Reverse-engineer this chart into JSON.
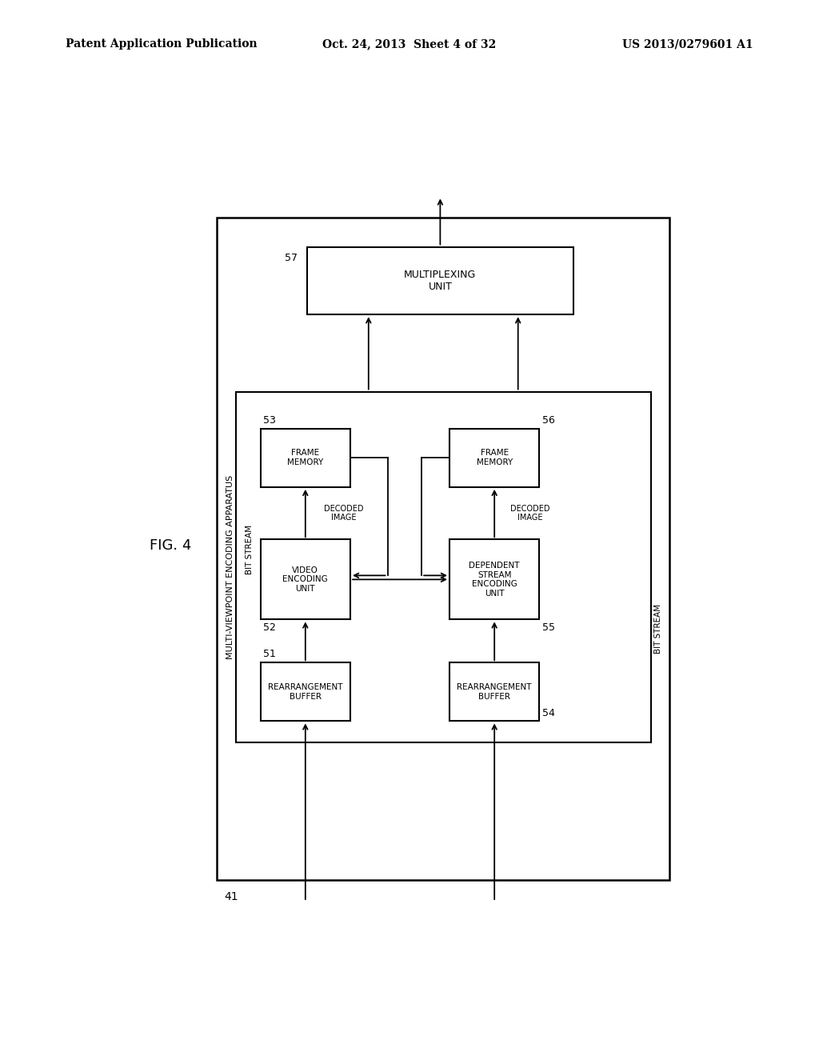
{
  "title_left": "Patent Application Publication",
  "title_center": "Oct. 24, 2013  Sheet 4 of 32",
  "title_right": "US 2013/0279601 A1",
  "fig_label": "FIG. 4",
  "bg_color": "#ffffff"
}
